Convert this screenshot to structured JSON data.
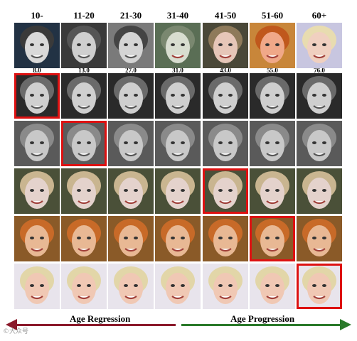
{
  "age_groups": [
    "10-",
    "11-20",
    "21-30",
    "31-40",
    "41-50",
    "51-60",
    "60+"
  ],
  "row1_ages": [
    "8.0",
    "13.0",
    "27.0",
    "31.0",
    "43.0",
    "55.0",
    "76.0"
  ],
  "arrows": {
    "left_label": "Age Regression",
    "right_label": "Age Progression",
    "left_color": "#8b1a2b",
    "right_color": "#2a7a2a"
  },
  "highlight_color": "#dd1111",
  "watermark": "©大众号"
}
